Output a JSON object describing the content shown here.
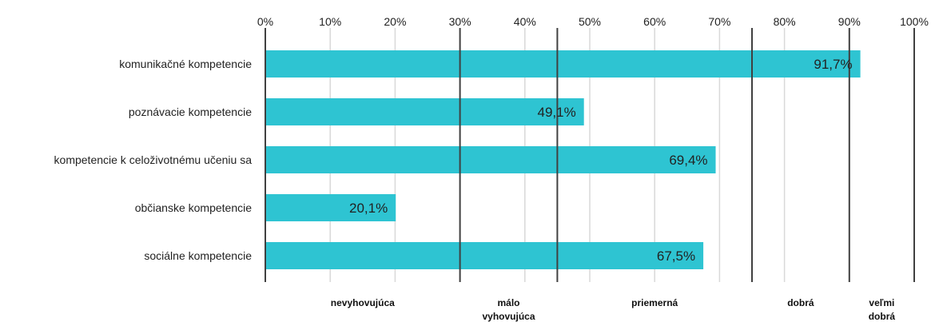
{
  "chart_data": {
    "type": "bar",
    "orientation": "horizontal",
    "categories": [
      "komunikačné kompetencie",
      "poznávacie kompetencie",
      "kompetencie k celoživotnému učeniu sa",
      "občianske kompetencie",
      "sociálne kompetencie"
    ],
    "values": [
      91.7,
      49.1,
      69.4,
      20.1,
      67.5
    ],
    "value_labels": [
      "91,7%",
      "49,1%",
      "69,4%",
      "20,1%",
      "67,5%"
    ],
    "xlim": [
      0,
      100
    ],
    "xticks": [
      "0%",
      "10%",
      "20%",
      "30%",
      "40%",
      "50%",
      "60%",
      "70%",
      "80%",
      "90%",
      "100%"
    ],
    "x_axis_position": "top",
    "grid": true,
    "bar_color": "#2ec4d2",
    "zone_boundaries": [
      0,
      30,
      45,
      75,
      90,
      100
    ],
    "zones": [
      {
        "label": [
          "nevyhovujúca"
        ],
        "from": 0,
        "to": 30
      },
      {
        "label": [
          "málo",
          "vyhovujúca"
        ],
        "from": 30,
        "to": 45
      },
      {
        "label": [
          "priemerná"
        ],
        "from": 45,
        "to": 75
      },
      {
        "label": [
          "dobrá"
        ],
        "from": 75,
        "to": 90
      },
      {
        "label": [
          "veľmi",
          "dobrá"
        ],
        "from": 90,
        "to": 100
      }
    ]
  }
}
